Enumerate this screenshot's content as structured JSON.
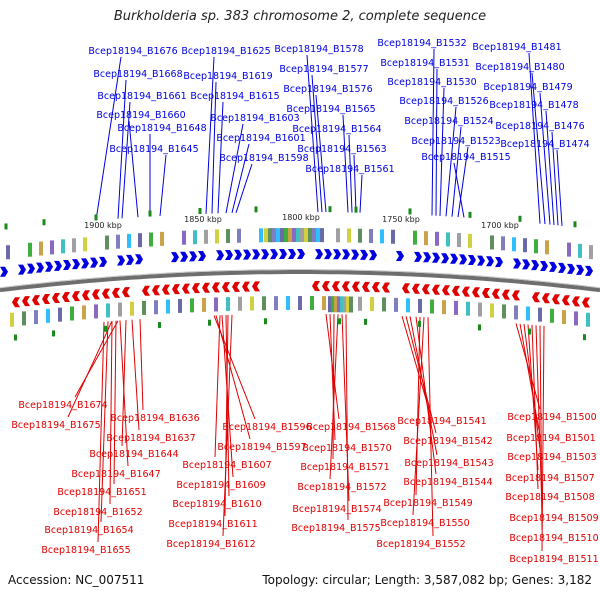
{
  "title": "Burkholderia sp. 383 chromosome 2, complete sequence",
  "footer": {
    "accession": "Accession: NC_007511",
    "summary": "Topology: circular; Length: 3,587,082 bp; Genes: 3,182"
  },
  "colors": {
    "forward": "#0000e0",
    "reverse": "#e00000",
    "backbone": "#808080",
    "tick": "#1a8a1a"
  },
  "scale_labels": [
    "1900 kbp",
    "1850 kbp",
    "1800 kbp",
    "1750 kbp",
    "1700 kbp"
  ],
  "top_labels": [
    "Bcep18194_B1676",
    "Bcep18194_B1668",
    "Bcep18194_B1661",
    "Bcep18194_B1660",
    "Bcep18194_B1648",
    "Bcep18194_B1645",
    "Bcep18194_B1625",
    "Bcep18194_B1619",
    "Bcep18194_B1615",
    "Bcep18194_B1603",
    "Bcep18194_B1601",
    "Bcep18194_B1598",
    "Bcep18194_B1578",
    "Bcep18194_B1577",
    "Bcep18194_B1576",
    "Bcep18194_B1565",
    "Bcep18194_B1564",
    "Bcep18194_B1563",
    "Bcep18194_B1561",
    "Bcep18194_B1532",
    "Bcep18194_B1531",
    "Bcep18194_B1530",
    "Bcep18194_B1526",
    "Bcep18194_B1524",
    "Bcep18194_B1523",
    "Bcep18194_B1515",
    "Bcep18194_B1481",
    "Bcep18194_B1480",
    "Bcep18194_B1479",
    "Bcep18194_B1478",
    "Bcep18194_B1476",
    "Bcep18194_B1474"
  ],
  "bottom_labels": [
    "Bcep18194_B1674",
    "Bcep18194_B1675",
    "Bcep18194_B1636",
    "Bcep18194_B1637",
    "Bcep18194_B1644",
    "Bcep18194_B1647",
    "Bcep18194_B1651",
    "Bcep18194_B1652",
    "Bcep18194_B1654",
    "Bcep18194_B1655",
    "Bcep18194_B1596",
    "Bcep18194_B1597",
    "Bcep18194_B1607",
    "Bcep18194_B1609",
    "Bcep18194_B1610",
    "Bcep18194_B1611",
    "Bcep18194_B1612",
    "Bcep18194_B1568",
    "Bcep18194_B1570",
    "Bcep18194_B1571",
    "Bcep18194_B1572",
    "Bcep18194_B1574",
    "Bcep18194_B1575",
    "Bcep18194_B1541",
    "Bcep18194_B1542",
    "Bcep18194_B1543",
    "Bcep18194_B1544",
    "Bcep18194_B1549",
    "Bcep18194_B1550",
    "Bcep18194_B1552",
    "Bcep18194_B1500",
    "Bcep18194_B1501",
    "Bcep18194_B1503",
    "Bcep18194_B1507",
    "Bcep18194_B1508",
    "Bcep18194_B1509",
    "Bcep18194_B1510",
    "Bcep18194_B1511"
  ]
}
